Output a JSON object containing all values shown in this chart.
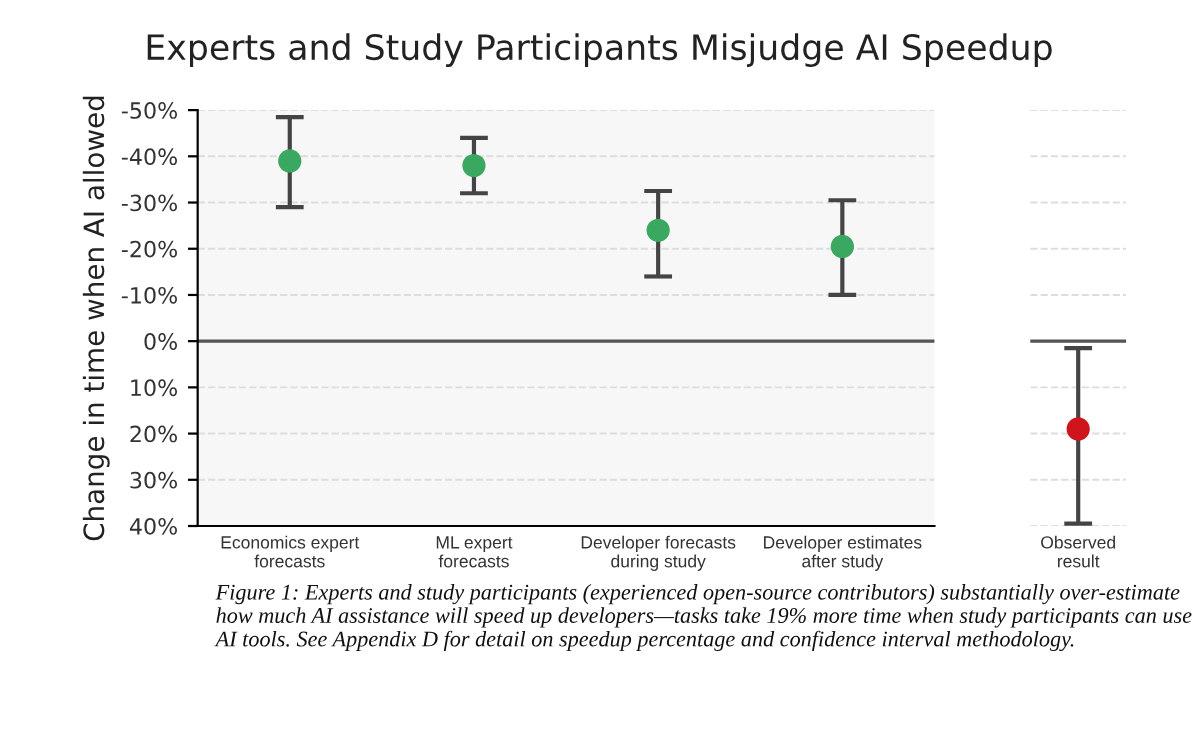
{
  "chart_data": [
    {
      "type": "scatter",
      "title": "Experts and Study Participants Misjudge AI Speedup",
      "ylabel": "Change in time when AI allowed",
      "categories": [
        "Economics expert\nforecasts",
        "ML expert\nforecasts",
        "Developer forecasts\nduring study",
        "Developer estimates\nafter study"
      ],
      "series": [
        {
          "color": "#3aa860",
          "values": [
            -39,
            -38,
            -24,
            -20.5
          ],
          "errors": [
            [
              -48.5,
              -29
            ],
            [
              -44,
              -32
            ],
            [
              -32.5,
              -14
            ],
            [
              -30.5,
              -10
            ]
          ]
        }
      ],
      "ylim": [
        40,
        -50
      ],
      "yticks": [
        {
          "value": -50,
          "label": "-50%"
        },
        {
          "value": -40,
          "label": "-40%"
        },
        {
          "value": -30,
          "label": "-30%"
        },
        {
          "value": -20,
          "label": "-20%"
        },
        {
          "value": -10,
          "label": "-10%"
        },
        {
          "value": 0,
          "label": "0%"
        },
        {
          "value": 10,
          "label": "10%"
        },
        {
          "value": 20,
          "label": "20%"
        },
        {
          "value": 30,
          "label": "30%"
        },
        {
          "value": 40,
          "label": "40%"
        }
      ],
      "ref_lines": [
        {
          "axis": "y",
          "value": 0,
          "color": "#555555"
        }
      ],
      "grid": "y",
      "marker": "circle",
      "annotations": [
        "Figure 1: Experts and study participants (experienced open-source contributors) substantially over-estimate how much AI assistance will speed up developers—tasks take 19% more time when study participants can use AI tools. See Appendix D for detail on speedup percentage and confidence interval methodology."
      ]
    },
    {
      "type": "scatter",
      "categories": [
        "Observed\nresult"
      ],
      "series": [
        {
          "color": "#d0141c",
          "values": [
            19
          ],
          "errors": [
            [
              1.5,
              39.5
            ]
          ]
        }
      ],
      "ylim": [
        40,
        -50
      ],
      "yticks": [
        {
          "value": -50,
          "label": null
        },
        {
          "value": -40,
          "label": null
        },
        {
          "value": -30,
          "label": null
        },
        {
          "value": -20,
          "label": null
        },
        {
          "value": -10,
          "label": null
        },
        {
          "value": 0,
          "label": null
        },
        {
          "value": 10,
          "label": null
        },
        {
          "value": 20,
          "label": null
        },
        {
          "value": 30,
          "label": null
        },
        {
          "value": 40,
          "label": null
        }
      ],
      "ref_lines": [
        {
          "axis": "y",
          "value": 0,
          "color": "#555555"
        }
      ],
      "grid": "y",
      "marker": "circle",
      "tick_labels": "x"
    }
  ]
}
